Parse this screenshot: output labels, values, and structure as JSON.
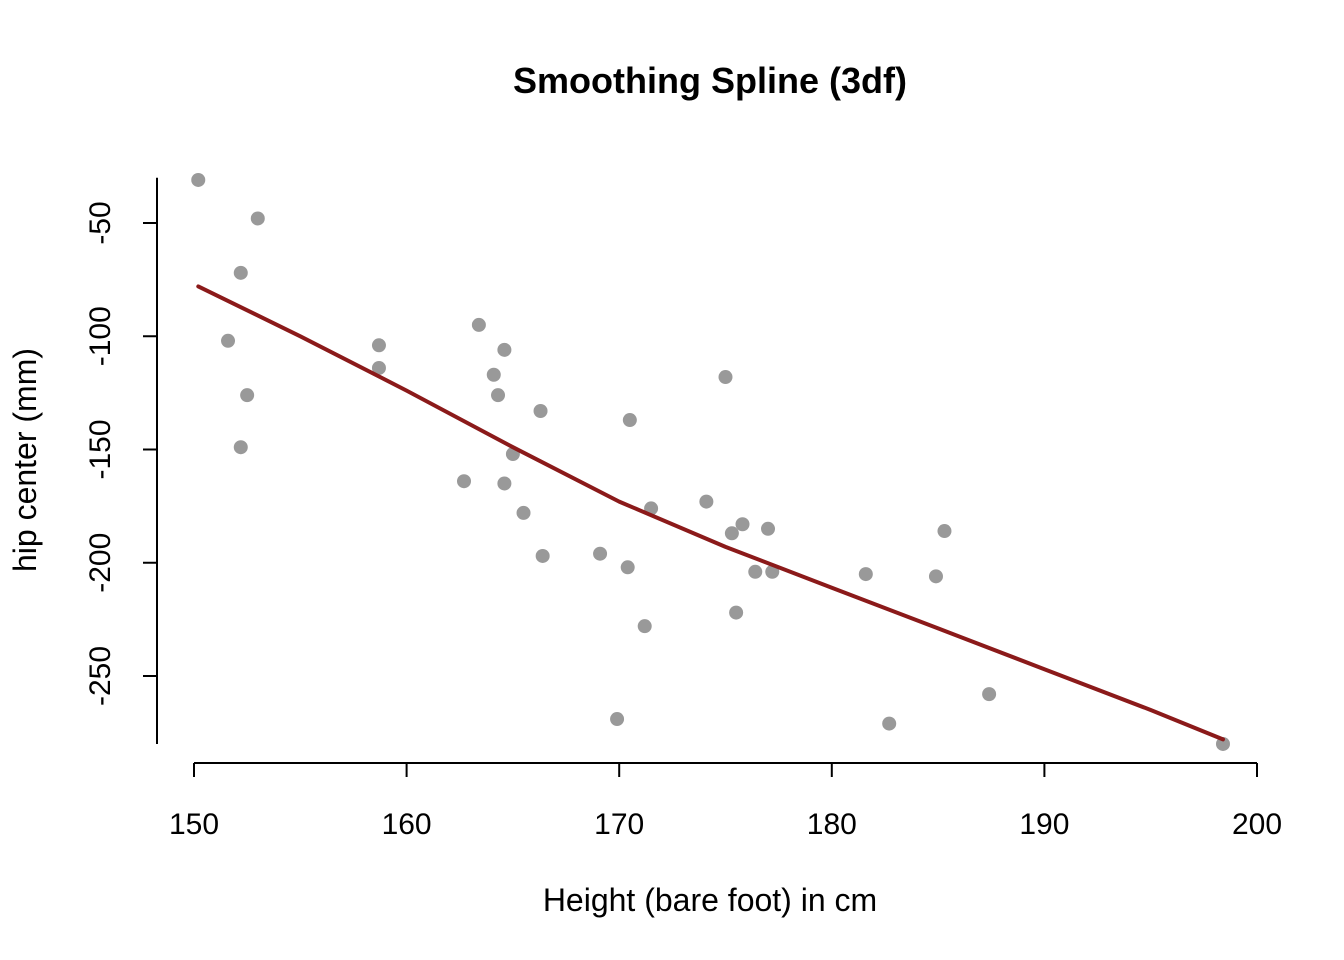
{
  "chart_data": {
    "type": "scatter",
    "title": "Smoothing Spline (3df)",
    "xlabel": "Height (bare foot) in cm",
    "ylabel": "hip center (mm)",
    "xlim": [
      150,
      200
    ],
    "ylim": [
      -280,
      -30
    ],
    "x_ticks": [
      150,
      160,
      170,
      180,
      190,
      200
    ],
    "y_ticks": [
      -50,
      -100,
      -150,
      -200,
      -250
    ],
    "grid": false,
    "legend": "none",
    "colors": {
      "points": "#999999",
      "line": "#8b1a1a"
    },
    "series": [
      {
        "type": "scatter",
        "points": [
          [
            150.2,
            -31
          ],
          [
            153.0,
            -48
          ],
          [
            152.2,
            -72
          ],
          [
            151.6,
            -102
          ],
          [
            152.5,
            -126
          ],
          [
            152.2,
            -149
          ],
          [
            158.7,
            -104
          ],
          [
            158.7,
            -114
          ],
          [
            163.4,
            -95
          ],
          [
            164.6,
            -106
          ],
          [
            164.1,
            -117
          ],
          [
            164.3,
            -126
          ],
          [
            166.3,
            -133
          ],
          [
            165.0,
            -152
          ],
          [
            162.7,
            -164
          ],
          [
            164.6,
            -165
          ],
          [
            165.5,
            -178
          ],
          [
            166.4,
            -197
          ],
          [
            169.1,
            -196
          ],
          [
            170.5,
            -137
          ],
          [
            170.4,
            -202
          ],
          [
            171.5,
            -176
          ],
          [
            171.2,
            -228
          ],
          [
            169.9,
            -269
          ],
          [
            174.1,
            -173
          ],
          [
            175.0,
            -118
          ],
          [
            175.8,
            -183
          ],
          [
            175.3,
            -187
          ],
          [
            177.0,
            -185
          ],
          [
            176.4,
            -204
          ],
          [
            177.2,
            -204
          ],
          [
            175.5,
            -222
          ],
          [
            181.6,
            -205
          ],
          [
            185.3,
            -186
          ],
          [
            184.9,
            -206
          ],
          [
            187.4,
            -258
          ],
          [
            182.7,
            -271
          ],
          [
            198.4,
            -280
          ]
        ]
      },
      {
        "type": "line",
        "points": [
          [
            150.2,
            -78
          ],
          [
            155,
            -100
          ],
          [
            160,
            -124
          ],
          [
            165,
            -149
          ],
          [
            170,
            -173
          ],
          [
            175,
            -193
          ],
          [
            180,
            -211
          ],
          [
            185,
            -229
          ],
          [
            190,
            -247
          ],
          [
            195,
            -265
          ],
          [
            198.4,
            -278
          ]
        ]
      }
    ]
  }
}
